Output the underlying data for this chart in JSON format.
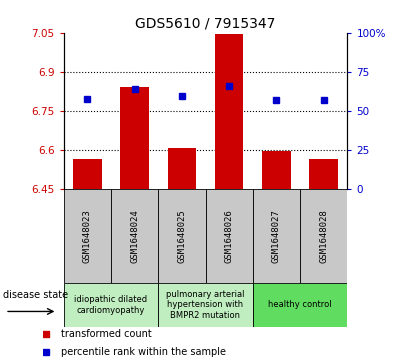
{
  "title": "GDS5610 / 7915347",
  "samples": [
    "GSM1648023",
    "GSM1648024",
    "GSM1648025",
    "GSM1648026",
    "GSM1648027",
    "GSM1648028"
  ],
  "bar_values": [
    6.565,
    6.84,
    6.605,
    7.045,
    6.595,
    6.565
  ],
  "bar_base": 6.45,
  "dot_values": [
    6.795,
    6.835,
    6.805,
    6.845,
    6.79,
    6.79
  ],
  "ylim_left": [
    6.45,
    7.05
  ],
  "ylim_right": [
    0,
    100
  ],
  "yticks_left": [
    6.45,
    6.6,
    6.75,
    6.9,
    7.05
  ],
  "ytick_labels_left": [
    "6.45",
    "6.6",
    "6.75",
    "6.9",
    "7.05"
  ],
  "yticks_right": [
    0,
    25,
    50,
    75,
    100
  ],
  "ytick_labels_right": [
    "0",
    "25",
    "50",
    "75",
    "100%"
  ],
  "hlines": [
    6.6,
    6.75,
    6.9
  ],
  "bar_color": "#cc0000",
  "dot_color": "#0000cc",
  "legend_items": [
    {
      "label": "transformed count",
      "color": "#cc0000"
    },
    {
      "label": "percentile rank within the sample",
      "color": "#0000cc"
    }
  ],
  "disease_state_label": "disease state",
  "tick_color_left": "#cc0000",
  "tick_color_right": "#0000cc",
  "bg_color_sample_boxes": "#c8c8c8",
  "bar_width": 0.6,
  "groups": [
    {
      "label": "idiopathic dilated\ncardiomyopathy",
      "start": 0,
      "end": 1,
      "color": "#c0eec0"
    },
    {
      "label": "pulmonary arterial\nhypertension with\nBMPR2 mutation",
      "start": 2,
      "end": 3,
      "color": "#c0eec0"
    },
    {
      "label": "healthy control",
      "start": 4,
      "end": 5,
      "color": "#60dd60"
    }
  ]
}
